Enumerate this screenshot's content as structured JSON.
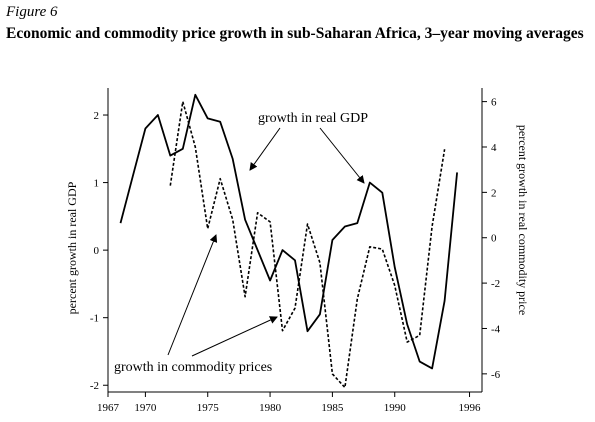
{
  "figure_label": "Figure 6",
  "figure_title": "Economic and commodity price growth in sub-Saharan Africa, 3–year moving averages",
  "chart_data": {
    "type": "line",
    "title": "Economic and commodity price growth in sub-Saharan Africa, 3–year moving averages",
    "xlabel": "",
    "ylabel": "percent growth in real GDP",
    "y2label": "percent growth in real commodity price",
    "xlim": [
      1967,
      1997
    ],
    "ylim": [
      -2.1,
      2.4
    ],
    "y2lim": [
      -6.8,
      6.6
    ],
    "xticks": [
      1967,
      1970,
      1975,
      1980,
      1985,
      1990,
      1996
    ],
    "yticks": [
      2,
      1,
      0,
      -1,
      -2
    ],
    "y2ticks": [
      6,
      4,
      2,
      0,
      -2,
      -4,
      -6
    ],
    "grid": false,
    "series": [
      {
        "name": "growth in real GDP",
        "axis": "left",
        "style": "solid",
        "x": [
          1968,
          1969,
          1970,
          1971,
          1972,
          1973,
          1974,
          1975,
          1976,
          1977,
          1978,
          1979,
          1980,
          1981,
          1982,
          1983,
          1984,
          1985,
          1986,
          1987,
          1988,
          1989,
          1990,
          1991,
          1992,
          1993,
          1994,
          1995
        ],
        "values": [
          0.4,
          1.1,
          1.8,
          2.0,
          1.4,
          1.5,
          2.3,
          1.95,
          1.9,
          1.35,
          0.45,
          0.0,
          -0.45,
          0.0,
          -0.15,
          -1.2,
          -0.95,
          0.15,
          0.35,
          0.4,
          1.0,
          0.85,
          -0.25,
          -1.1,
          -1.65,
          -1.75,
          -0.75,
          1.15
        ]
      },
      {
        "name": "growth in commodity prices",
        "axis": "right",
        "style": "dashed",
        "x": [
          1972,
          1973,
          1974,
          1975,
          1976,
          1977,
          1978,
          1979,
          1980,
          1981,
          1982,
          1983,
          1984,
          1985,
          1986,
          1987,
          1988,
          1989,
          1990,
          1991,
          1992,
          1993,
          1994
        ],
        "values": [
          2.3,
          6.0,
          4.0,
          0.4,
          2.6,
          0.8,
          -2.6,
          1.1,
          0.7,
          -4.1,
          -3.1,
          0.6,
          -1.1,
          -6.0,
          -6.6,
          -2.7,
          -0.4,
          -0.5,
          -2.1,
          -4.6,
          -4.3,
          0.5,
          3.9
        ]
      }
    ],
    "annotations": [
      {
        "text": "growth in real GDP"
      },
      {
        "text": "growth in commodity prices"
      }
    ]
  }
}
